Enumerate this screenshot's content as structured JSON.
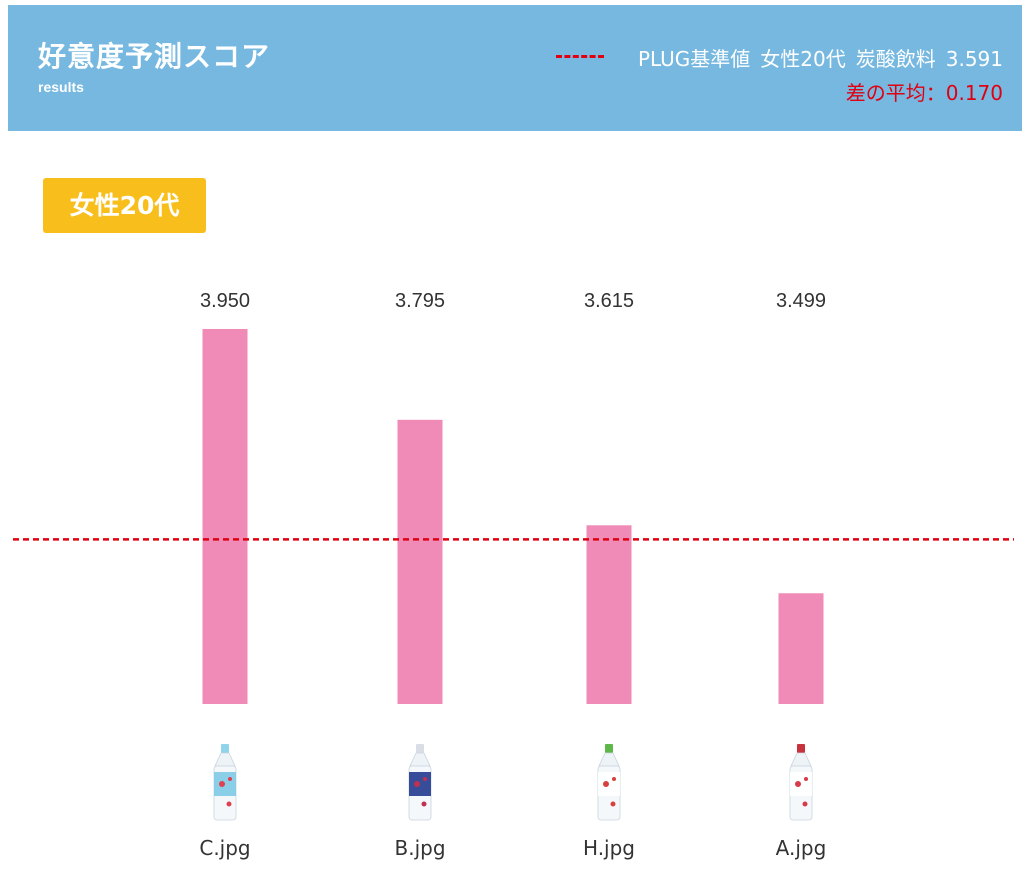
{
  "header": {
    "title": "好意度予測スコア",
    "subtitle": "results",
    "legend_label": "PLUG基準値",
    "legend_segment": "女性20代",
    "legend_category": "炭酸飲料",
    "legend_value": "3.591",
    "diff_text": "差の平均：0.170",
    "bg_color": "#76b8e0"
  },
  "segment_badge": {
    "label": "女性20代",
    "color": "#f8bf1c"
  },
  "chart_data": {
    "type": "bar",
    "categories": [
      "C.jpg",
      "B.jpg",
      "H.jpg",
      "A.jpg"
    ],
    "values": [
      3.95,
      3.795,
      3.615,
      3.499
    ],
    "value_labels": [
      "3.950",
      "3.795",
      "3.615",
      "3.499"
    ],
    "baseline": 3.591,
    "baseline_label": "PLUG基準値",
    "ylim": [
      3.31,
      3.95
    ],
    "bar_color": "#ef8bb6",
    "baseline_color": "#e00012",
    "title": "",
    "xlabel": "",
    "ylabel": "",
    "grid": false
  },
  "thumbnails": [
    {
      "name": "C.jpg",
      "cap": "#8fd3ec",
      "label": "#7ec9e6",
      "accent": "#e04050"
    },
    {
      "name": "B.jpg",
      "cap": "#d8dde6",
      "label": "#233a8f",
      "accent": "#c03050"
    },
    {
      "name": "H.jpg",
      "cap": "#5db848",
      "label": "#ffffff",
      "accent": "#d84040"
    },
    {
      "name": "A.jpg",
      "cap": "#c8323c",
      "label": "#ffffff",
      "accent": "#d83a4a"
    }
  ]
}
